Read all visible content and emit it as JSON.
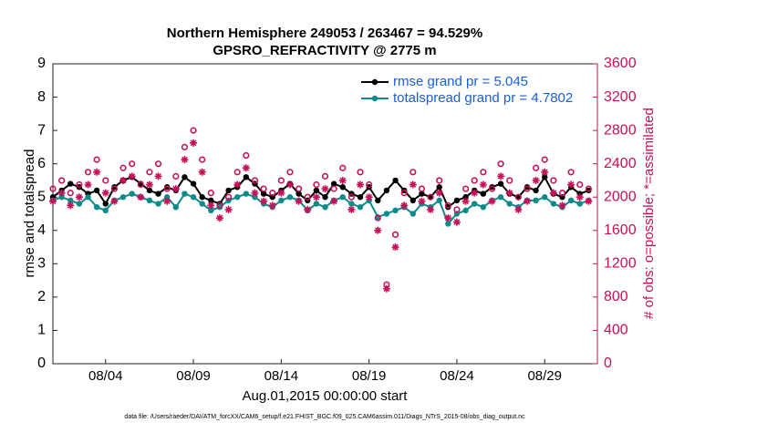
{
  "chart_data": {
    "type": "line",
    "title": "Northern Hemisphere 249053 / 263467 = 94.529%",
    "subtitle": "GPSRO_REFRACTIVITY @ 2775 m",
    "xlabel": "Aug.01,2015 00:00:00 start",
    "ylabel": "rmse and totalspread",
    "y2label": "# of obs: o=possible; *=assimilated",
    "footnote": "data file: /Users/raeder/DAI/ATM_forcXX/CAM6_setup/f.e21.FHIST_BGC.f09_025.CAM6assim.011/Diags_NTrS_2015-08/obs_diag_output.nc",
    "xlim": [
      0,
      31
    ],
    "xticks": [
      {
        "value": 3,
        "label": "08/04"
      },
      {
        "value": 8,
        "label": "08/09"
      },
      {
        "value": 13,
        "label": "08/14"
      },
      {
        "value": 18,
        "label": "08/19"
      },
      {
        "value": 23,
        "label": "08/24"
      },
      {
        "value": 28,
        "label": "08/29"
      }
    ],
    "ylim": [
      0,
      9
    ],
    "yticks": [
      0,
      1,
      2,
      3,
      4,
      5,
      6,
      7,
      8,
      9
    ],
    "y2lim": [
      0,
      3600
    ],
    "y2ticks": [
      0,
      400,
      800,
      1200,
      1600,
      2000,
      2400,
      2800,
      3200,
      3600
    ],
    "y2color": "#c8105a",
    "legend_text_color": "#1a5fd6",
    "legend": "upper right",
    "x": [
      0,
      0.5,
      1,
      1.5,
      2,
      2.5,
      3,
      3.5,
      4,
      4.5,
      5,
      5.5,
      6,
      6.5,
      7,
      7.5,
      8,
      8.5,
      9,
      9.5,
      10,
      10.5,
      11,
      11.5,
      12,
      12.5,
      13,
      13.5,
      14,
      14.5,
      15,
      15.5,
      16,
      16.5,
      17,
      17.5,
      18,
      18.5,
      19,
      19.5,
      20,
      20.5,
      21,
      21.5,
      22,
      22.5,
      23,
      23.5,
      24,
      24.5,
      25,
      25.5,
      26,
      26.5,
      27,
      27.5,
      28,
      28.5,
      29,
      29.5,
      30,
      30.5
    ],
    "series": [
      {
        "name": "rmse grand pr = 5.045",
        "color": "#000000",
        "marker": "dot",
        "values": [
          5.0,
          5.2,
          5.4,
          5.3,
          5.1,
          5.2,
          4.8,
          5.3,
          5.5,
          5.6,
          5.4,
          5.2,
          5.1,
          5.3,
          5.2,
          5.6,
          5.4,
          5.0,
          4.9,
          4.8,
          5.2,
          5.3,
          5.6,
          5.4,
          5.1,
          5.0,
          5.2,
          5.4,
          5.1,
          4.9,
          5.2,
          5.0,
          5.4,
          5.3,
          5.1,
          5.0,
          5.3,
          4.9,
          5.2,
          5.5,
          5.2,
          4.9,
          5.1,
          5.0,
          5.3,
          4.7,
          4.9,
          5.0,
          5.2,
          5.1,
          5.3,
          5.4,
          5.1,
          5.0,
          5.3,
          5.2,
          5.6,
          5.1,
          5.0,
          5.3,
          5.1,
          5.2
        ]
      },
      {
        "name": "totalspread grand pr = 4.7802",
        "color": "#0f8a8a",
        "marker": "dot",
        "values": [
          4.9,
          5.0,
          4.9,
          4.8,
          5.0,
          4.7,
          4.6,
          4.9,
          5.0,
          5.1,
          5.0,
          4.9,
          4.8,
          5.0,
          4.7,
          5.1,
          5.0,
          4.8,
          4.6,
          4.7,
          4.9,
          5.0,
          5.1,
          5.0,
          4.8,
          4.7,
          4.9,
          5.0,
          4.9,
          4.6,
          4.8,
          4.7,
          4.9,
          5.0,
          4.8,
          4.7,
          4.9,
          4.4,
          4.5,
          4.6,
          4.7,
          4.5,
          4.8,
          4.7,
          4.9,
          4.2,
          4.5,
          4.6,
          4.8,
          4.7,
          4.9,
          5.0,
          4.8,
          4.7,
          4.9,
          4.9,
          5.0,
          4.8,
          4.7,
          4.9,
          4.8,
          4.9
        ]
      },
      {
        "color": "#c8105a",
        "marker": "circle",
        "axis": "y2",
        "values": [
          2100,
          2200,
          2050,
          2150,
          2300,
          2450,
          2200,
          2100,
          2350,
          2400,
          2150,
          2300,
          2400,
          2100,
          2250,
          2600,
          2800,
          2450,
          2050,
          1900,
          2000,
          2300,
          2500,
          2200,
          2100,
          2050,
          2200,
          2300,
          2100,
          2000,
          2150,
          2250,
          2100,
          2350,
          2000,
          2300,
          2150,
          1750,
          950,
          1550,
          2050,
          2300,
          2100,
          2000,
          2200,
          1900,
          1850,
          2100,
          2200,
          2300,
          2100,
          2400,
          2200,
          2000,
          2100,
          2350,
          2450,
          2200,
          2050,
          2300,
          2150,
          2100
        ]
      },
      {
        "color": "#c8105a",
        "marker": "star",
        "axis": "y2",
        "values": [
          1950,
          2050,
          1900,
          2000,
          2150,
          2300,
          2050,
          1950,
          2200,
          2250,
          2000,
          2150,
          2250,
          1950,
          2100,
          2450,
          2650,
          2300,
          1900,
          1750,
          1850,
          2150,
          2350,
          2050,
          1950,
          1900,
          2050,
          2150,
          1950,
          1850,
          2000,
          2100,
          1950,
          2200,
          1850,
          2150,
          2000,
          1600,
          900,
          1400,
          1900,
          2150,
          1950,
          1850,
          2050,
          1750,
          1700,
          1950,
          2050,
          2150,
          1950,
          2250,
          2050,
          1850,
          1950,
          2200,
          2300,
          2050,
          1900,
          2150,
          2000,
          1950
        ]
      }
    ]
  }
}
